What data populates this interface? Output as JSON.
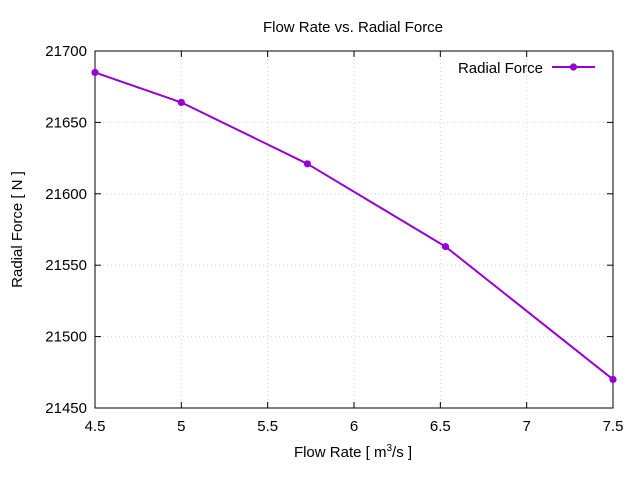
{
  "chart_data": {
    "type": "line",
    "title": "Flow Rate vs. Radial Force",
    "xlabel": {
      "prefix": "Flow Rate [ m",
      "superscript": "3",
      "suffix": "/s ]"
    },
    "ylabel": "Radial Force [ N ]",
    "xlim": [
      4.5,
      7.5
    ],
    "ylim": [
      21450,
      21700
    ],
    "xticks": [
      4.5,
      5,
      5.5,
      6,
      6.5,
      7,
      7.5
    ],
    "xtick_labels": [
      "4.5",
      "5",
      "5.5",
      "6",
      "6.5",
      "7",
      "7.5"
    ],
    "yticks": [
      21450,
      21500,
      21550,
      21600,
      21650,
      21700
    ],
    "ytick_labels": [
      "21450",
      "21500",
      "21550",
      "21600",
      "21650",
      "21700"
    ],
    "grid": true,
    "legend_position": "top-right",
    "series": [
      {
        "name": "Radial Force",
        "color": "#9400d3",
        "marker": "circle",
        "x": [
          4.5,
          5.0,
          5.73,
          6.53,
          7.5
        ],
        "y": [
          21685,
          21664,
          21621,
          21563,
          21470
        ]
      }
    ]
  }
}
